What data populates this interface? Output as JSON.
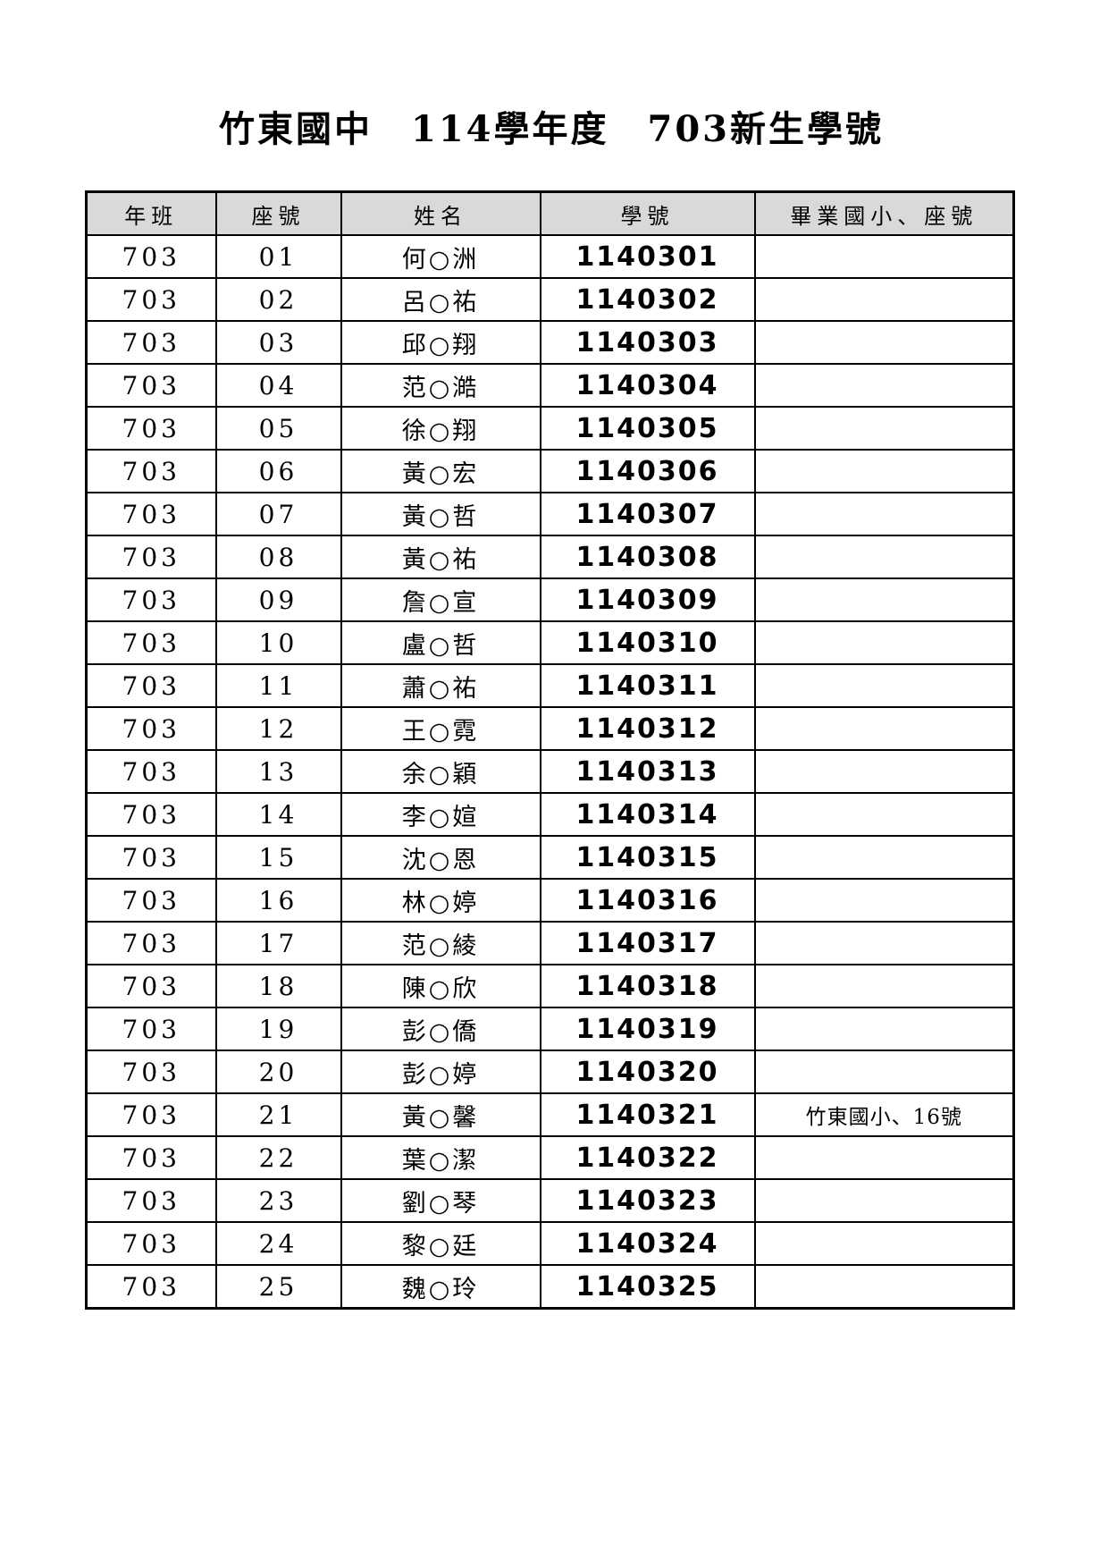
{
  "page": {
    "title": "竹東國中　114學年度　703新生學號"
  },
  "colors": {
    "header_bg": "#d9d9d9",
    "border": "#000000",
    "text": "#000000"
  },
  "table": {
    "headers": [
      "年班",
      "座號",
      "姓名",
      "學號",
      "畢業國小、座號"
    ],
    "rows": [
      {
        "class_no": "703",
        "seat": "01",
        "name": "何○洲",
        "student_id": "1140301",
        "note": ""
      },
      {
        "class_no": "703",
        "seat": "02",
        "name": "呂○祐",
        "student_id": "1140302",
        "note": ""
      },
      {
        "class_no": "703",
        "seat": "03",
        "name": "邱○翔",
        "student_id": "1140303",
        "note": ""
      },
      {
        "class_no": "703",
        "seat": "04",
        "name": "范○澔",
        "student_id": "1140304",
        "note": ""
      },
      {
        "class_no": "703",
        "seat": "05",
        "name": "徐○翔",
        "student_id": "1140305",
        "note": ""
      },
      {
        "class_no": "703",
        "seat": "06",
        "name": "黃○宏",
        "student_id": "1140306",
        "note": ""
      },
      {
        "class_no": "703",
        "seat": "07",
        "name": "黃○哲",
        "student_id": "1140307",
        "note": ""
      },
      {
        "class_no": "703",
        "seat": "08",
        "name": "黃○祐",
        "student_id": "1140308",
        "note": ""
      },
      {
        "class_no": "703",
        "seat": "09",
        "name": "詹○宣",
        "student_id": "1140309",
        "note": ""
      },
      {
        "class_no": "703",
        "seat": "10",
        "name": "盧○哲",
        "student_id": "1140310",
        "note": ""
      },
      {
        "class_no": "703",
        "seat": "11",
        "name": "蕭○祐",
        "student_id": "1140311",
        "note": ""
      },
      {
        "class_no": "703",
        "seat": "12",
        "name": "王○霓",
        "student_id": "1140312",
        "note": ""
      },
      {
        "class_no": "703",
        "seat": "13",
        "name": "余○穎",
        "student_id": "1140313",
        "note": ""
      },
      {
        "class_no": "703",
        "seat": "14",
        "name": "李○媗",
        "student_id": "1140314",
        "note": ""
      },
      {
        "class_no": "703",
        "seat": "15",
        "name": "沈○恩",
        "student_id": "1140315",
        "note": ""
      },
      {
        "class_no": "703",
        "seat": "16",
        "name": "林○婷",
        "student_id": "1140316",
        "note": ""
      },
      {
        "class_no": "703",
        "seat": "17",
        "name": "范○綾",
        "student_id": "1140317",
        "note": ""
      },
      {
        "class_no": "703",
        "seat": "18",
        "name": "陳○欣",
        "student_id": "1140318",
        "note": ""
      },
      {
        "class_no": "703",
        "seat": "19",
        "name": "彭○僑",
        "student_id": "1140319",
        "note": ""
      },
      {
        "class_no": "703",
        "seat": "20",
        "name": "彭○婷",
        "student_id": "1140320",
        "note": ""
      },
      {
        "class_no": "703",
        "seat": "21",
        "name": "黃○馨",
        "student_id": "1140321",
        "note": "竹東國小、16號"
      },
      {
        "class_no": "703",
        "seat": "22",
        "name": "葉○潔",
        "student_id": "1140322",
        "note": ""
      },
      {
        "class_no": "703",
        "seat": "23",
        "name": "劉○琴",
        "student_id": "1140323",
        "note": ""
      },
      {
        "class_no": "703",
        "seat": "24",
        "name": "黎○廷",
        "student_id": "1140324",
        "note": ""
      },
      {
        "class_no": "703",
        "seat": "25",
        "name": "魏○玲",
        "student_id": "1140325",
        "note": ""
      }
    ]
  }
}
